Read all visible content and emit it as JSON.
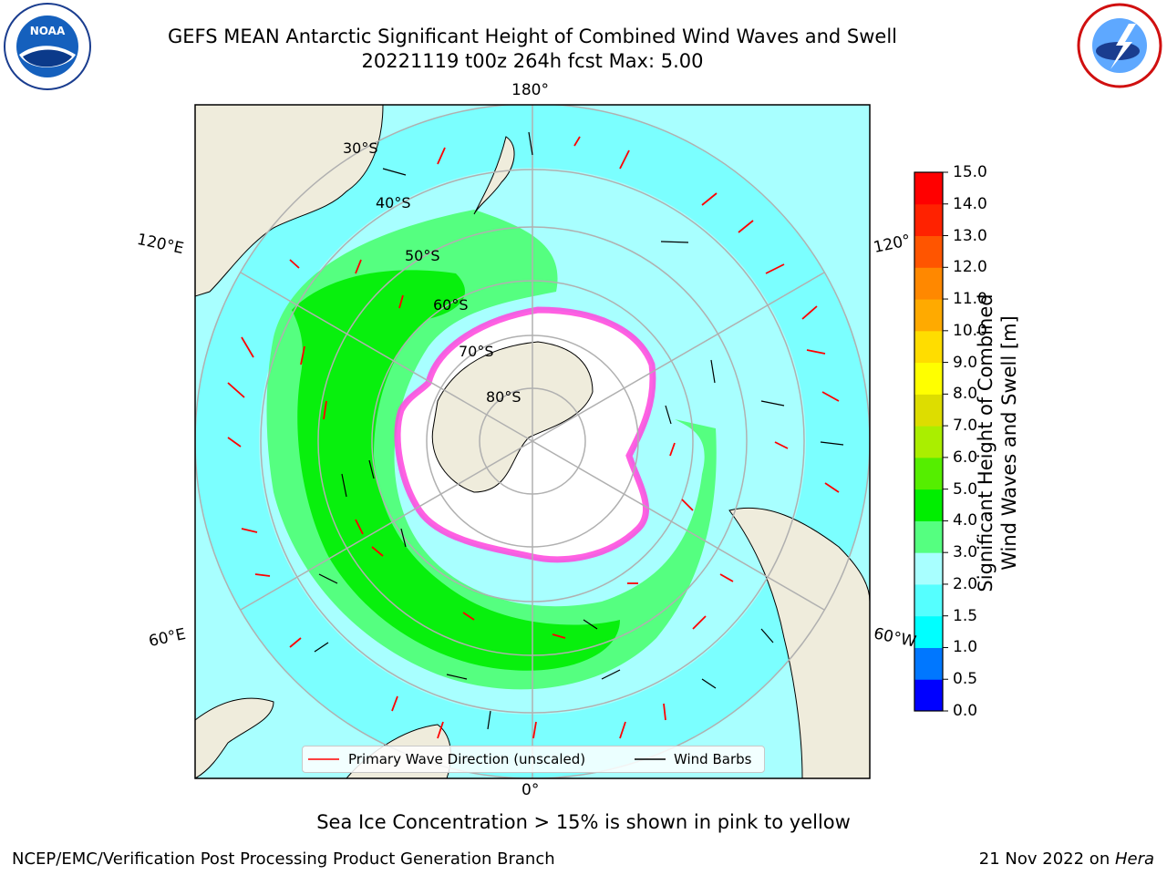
{
  "header": {
    "title_line1": "GEFS MEAN Antarctic Significant Height of Combined Wind Waves and Swell",
    "title_line2": "20221119 t00z 264h fcst   Max: 5.00"
  },
  "logos": {
    "left": "noaa-logo",
    "right": "nws-logo"
  },
  "map": {
    "projection": "south-polar-stereographic",
    "lon_labels": {
      "top": "180°",
      "bottom": "0°",
      "left_upper": "120°E",
      "left_lower": "60°E",
      "right_upper": "120°",
      "right_lower": "60°W"
    },
    "lat_labels": [
      "30°S",
      "40°S",
      "50°S",
      "60°S",
      "70°S",
      "80°S"
    ],
    "colors": {
      "land": "#efecdc",
      "ocean_base": "#a8ffff"
    }
  },
  "legend": {
    "wave_label": "Primary Wave Direction (unscaled)",
    "wind_label": "Wind Barbs",
    "wave_color": "#ff0000",
    "wind_color": "#000000"
  },
  "colorbar": {
    "label_line1": "Significant Height of Combined",
    "label_line2": "Wind Waves and Swell [m]",
    "ticks": [
      "0.0",
      "0.5",
      "1.0",
      "1.5",
      "2.0",
      "3.0",
      "4.0",
      "5.0",
      "6.0",
      "7.0",
      "8.0",
      "9.0",
      "10.0",
      "11.0",
      "12.0",
      "13.0",
      "14.0",
      "15.0"
    ],
    "colors": [
      "#0000ff",
      "#0077ff",
      "#00ffff",
      "#55ffff",
      "#a8ffff",
      "#55ff80",
      "#00ee00",
      "#55ee00",
      "#aaee00",
      "#dddd00",
      "#ffff00",
      "#ffdd00",
      "#ffaa00",
      "#ff8800",
      "#ff5500",
      "#ff2200",
      "#ff0000"
    ]
  },
  "footer": {
    "ice_note": "Sea Ice Concentration > 15% is shown in pink to yellow",
    "left": "NCEP/EMC/Verification Post Processing Product Generation Branch",
    "right_prefix": "21 Nov 2022 on ",
    "right_host": "Hera"
  }
}
